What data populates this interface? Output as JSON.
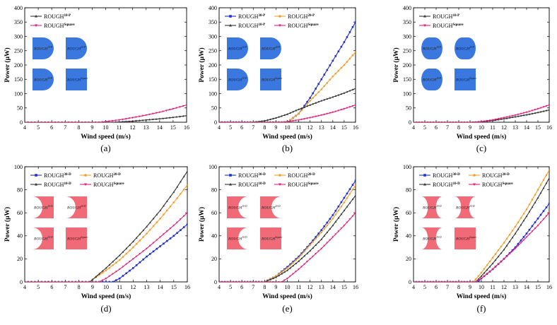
{
  "panels": [
    {
      "id": "a",
      "letter": "(a)",
      "ylim": [
        0,
        400
      ],
      "ytick_step": 50,
      "inset_color": "#3a78e0",
      "legend_cols": 1,
      "insets": [
        {
          "label_main": "ROUGH",
          "label_sub": "10-P",
          "shape": "round-right"
        },
        {
          "label_main": "ROUGH",
          "label_sub": "20-P",
          "shape": "round-right"
        },
        {
          "label_main": "ROUGH",
          "label_sub": "30-P",
          "shape": "round-right"
        },
        {
          "label_main": "ROUGH",
          "label_sub": "Square",
          "shape": "square"
        }
      ],
      "chart_data": {
        "type": "line",
        "xlabel": "Wind speed (m/s)",
        "ylabel": "Power (μW)",
        "xlim": [
          4,
          16
        ],
        "ylim": [
          0,
          400
        ],
        "xticks": [
          4,
          5,
          6,
          7,
          8,
          9,
          10,
          11,
          12,
          13,
          14,
          15,
          16
        ],
        "yticks": [
          0,
          50,
          100,
          150,
          200,
          250,
          300,
          350,
          400
        ],
        "series": [
          {
            "name_main": "ROUGH",
            "name_sub": "10-P",
            "color": "#333333",
            "marker": "triangle",
            "x": [
              4,
              10.5,
              11,
              12,
              13,
              14,
              15,
              16
            ],
            "y": [
              0,
              0,
              1,
              4,
              8,
              12,
              17,
              23
            ]
          },
          {
            "name_main": "ROUGH",
            "name_sub": "Square",
            "color": "#e0217a",
            "marker": "triangle-down",
            "x": [
              4,
              9.5,
              10,
              11,
              12,
              13,
              14,
              15,
              16
            ],
            "y": [
              0,
              0,
              2,
              8,
              16,
              25,
              35,
              47,
              60
            ]
          }
        ]
      }
    },
    {
      "id": "b",
      "letter": "(b)",
      "ylim": [
        0,
        400
      ],
      "ytick_step": 50,
      "inset_color": "#3a78e0",
      "legend_cols": 2,
      "insets": [
        {
          "label_main": "ROUGH",
          "label_sub": "10-P",
          "shape": "round-right"
        },
        {
          "label_main": "ROUGH",
          "label_sub": "20-P",
          "shape": "round-right"
        },
        {
          "label_main": "ROUGH",
          "label_sub": "30-P",
          "shape": "round-right"
        },
        {
          "label_main": "ROUGH",
          "label_sub": "Square",
          "shape": "square"
        }
      ],
      "chart_data": {
        "type": "line",
        "xlabel": "Wind speed (m/s)",
        "ylabel": "Power (μW)",
        "xlim": [
          4,
          16
        ],
        "ylim": [
          0,
          400
        ],
        "xticks": [
          4,
          5,
          6,
          7,
          8,
          9,
          10,
          11,
          12,
          13,
          14,
          15,
          16
        ],
        "yticks": [
          0,
          50,
          100,
          150,
          200,
          250,
          300,
          350,
          400
        ],
        "series": [
          {
            "name_main": "ROUGH",
            "name_sub": "30-P",
            "color": "#1f2fd1",
            "marker": "square",
            "x": [
              4,
              10,
              11,
              12,
              13,
              14,
              15,
              16
            ],
            "y": [
              0,
              0,
              30,
              85,
              150,
              215,
              280,
              350
            ]
          },
          {
            "name_main": "ROUGH",
            "name_sub": "20-P",
            "color": "#f0a030",
            "marker": "circle",
            "x": [
              4,
              10,
              11,
              12,
              13,
              14,
              15,
              16
            ],
            "y": [
              0,
              0,
              30,
              75,
              115,
              160,
              200,
              245
            ]
          },
          {
            "name_main": "ROUGH",
            "name_sub": "10-P",
            "color": "#333333",
            "marker": "triangle",
            "x": [
              4,
              7,
              8,
              9,
              10,
              11,
              12,
              13,
              14,
              15,
              16
            ],
            "y": [
              0,
              0,
              5,
              15,
              28,
              45,
              60,
              75,
              88,
              102,
              118
            ]
          },
          {
            "name_main": "ROUGH",
            "name_sub": "Square",
            "color": "#e0217a",
            "marker": "triangle-down",
            "x": [
              4,
              9.5,
              10,
              11,
              12,
              13,
              14,
              15,
              16
            ],
            "y": [
              0,
              0,
              2,
              8,
              16,
              25,
              35,
              47,
              60
            ]
          }
        ]
      }
    },
    {
      "id": "c",
      "letter": "(c)",
      "ylim": [
        0,
        400
      ],
      "ytick_step": 50,
      "inset_color": "#3a78e0",
      "legend_cols": 1,
      "insets": [
        {
          "label_main": "ROUGH",
          "label_sub": "10-P",
          "shape": "round-both"
        },
        {
          "label_main": "ROUGH",
          "label_sub": "20-P",
          "shape": "round-both"
        },
        {
          "label_main": "ROUGH",
          "label_sub": "30-P",
          "shape": "round-both"
        },
        {
          "label_main": "ROUGH",
          "label_sub": "Square",
          "shape": "square"
        }
      ],
      "chart_data": {
        "type": "line",
        "xlabel": "Wind speed (m/s)",
        "ylabel": "Power (μW)",
        "xlim": [
          4,
          16
        ],
        "ylim": [
          0,
          400
        ],
        "xticks": [
          4,
          5,
          6,
          7,
          8,
          9,
          10,
          11,
          12,
          13,
          14,
          15,
          16
        ],
        "yticks": [
          0,
          50,
          100,
          150,
          200,
          250,
          300,
          350,
          400
        ],
        "series": [
          {
            "name_main": "ROUGH",
            "name_sub": "10-P",
            "color": "#333333",
            "marker": "triangle",
            "x": [
              4,
              9,
              10,
              11,
              12,
              13,
              14,
              15,
              16
            ],
            "y": [
              0,
              0,
              2,
              6,
              12,
              19,
              26,
              34,
              43
            ]
          },
          {
            "name_main": "ROUGH",
            "name_sub": "Square",
            "color": "#e0217a",
            "marker": "triangle-down",
            "x": [
              4,
              9.5,
              10,
              11,
              12,
              13,
              14,
              15,
              16
            ],
            "y": [
              0,
              0,
              2,
              8,
              16,
              25,
              35,
              47,
              60
            ]
          }
        ]
      }
    },
    {
      "id": "d",
      "letter": "(d)",
      "ylim": [
        0,
        100
      ],
      "ytick_step": 20,
      "inset_color": "#f06a78",
      "legend_cols": 2,
      "insets": [
        {
          "label_main": "ROUGH",
          "label_sub": "10-D",
          "shape": "concave-left"
        },
        {
          "label_main": "ROUGH",
          "label_sub": "20-D",
          "shape": "concave-left"
        },
        {
          "label_main": "ROUGH",
          "label_sub": "30-D",
          "shape": "concave-left"
        },
        {
          "label_main": "ROUGH",
          "label_sub": "Square",
          "shape": "square"
        }
      ],
      "chart_data": {
        "type": "line",
        "xlabel": "Wind speed (m/s)",
        "ylabel": "Power (μW)",
        "xlim": [
          4,
          16
        ],
        "ylim": [
          0,
          100
        ],
        "xticks": [
          4,
          5,
          6,
          7,
          8,
          9,
          10,
          11,
          12,
          13,
          14,
          15,
          16
        ],
        "yticks": [
          0,
          20,
          40,
          60,
          80,
          100
        ],
        "series": [
          {
            "name_main": "ROUGH",
            "name_sub": "30-D",
            "color": "#1f2fd1",
            "marker": "square",
            "x": [
              4,
              10.5,
              11,
              12,
              13,
              14,
              15,
              16
            ],
            "y": [
              0,
              0,
              3,
              12,
              22,
              31,
              40,
              50
            ]
          },
          {
            "name_main": "ROUGH",
            "name_sub": "20-D",
            "color": "#f0a030",
            "marker": "circle",
            "x": [
              4,
              8.8,
              9,
              10,
              11,
              12,
              13,
              14,
              15,
              16
            ],
            "y": [
              0,
              0,
              2,
              10,
              19,
              30,
              42,
              55,
              69,
              84
            ]
          },
          {
            "name_main": "ROUGH",
            "name_sub": "10-D",
            "color": "#333333",
            "marker": "triangle",
            "x": [
              4,
              8.8,
              9,
              10,
              11,
              12,
              13,
              14,
              15,
              16
            ],
            "y": [
              0,
              0,
              2,
              12,
              23,
              35,
              48,
              62,
              78,
              96
            ]
          },
          {
            "name_main": "ROUGH",
            "name_sub": "Square",
            "color": "#e0217a",
            "marker": "triangle-down",
            "x": [
              4,
              9.5,
              10,
              11,
              12,
              13,
              14,
              15,
              16
            ],
            "y": [
              0,
              0,
              3,
              11,
              20,
              29,
              39,
              49,
              60
            ]
          }
        ]
      }
    },
    {
      "id": "e",
      "letter": "(e)",
      "ylim": [
        0,
        100
      ],
      "ytick_step": 20,
      "inset_color": "#f06a78",
      "legend_cols": 2,
      "insets": [
        {
          "label_main": "ROUGH",
          "label_sub": "10-D",
          "shape": "concave-right"
        },
        {
          "label_main": "ROUGH",
          "label_sub": "20-D",
          "shape": "concave-right"
        },
        {
          "label_main": "ROUGH",
          "label_sub": "30-D",
          "shape": "concave-right"
        },
        {
          "label_main": "ROUGH",
          "label_sub": "Square",
          "shape": "square"
        }
      ],
      "chart_data": {
        "type": "line",
        "xlabel": "Wind speed (m/s)",
        "ylabel": "Power (μW)",
        "xlim": [
          4,
          16
        ],
        "ylim": [
          0,
          100
        ],
        "xticks": [
          4,
          5,
          6,
          7,
          8,
          9,
          10,
          11,
          12,
          13,
          14,
          15,
          16
        ],
        "yticks": [
          0,
          20,
          40,
          60,
          80,
          100
        ],
        "series": [
          {
            "name_main": "ROUGH",
            "name_sub": "30-D",
            "color": "#1f2fd1",
            "marker": "square",
            "x": [
              4,
              8,
              9,
              10,
              11,
              12,
              13,
              14,
              15,
              16
            ],
            "y": [
              0,
              0,
              5,
              13,
              22,
              33,
              45,
              58,
              73,
              88
            ]
          },
          {
            "name_main": "ROUGH",
            "name_sub": "20-D",
            "color": "#f0a030",
            "marker": "circle",
            "x": [
              4,
              8,
              9,
              10,
              11,
              12,
              13,
              14,
              15,
              16
            ],
            "y": [
              0,
              0,
              5,
              12,
              21,
              32,
              43,
              55,
              69,
              84
            ]
          },
          {
            "name_main": "ROUGH",
            "name_sub": "10-D",
            "color": "#333333",
            "marker": "triangle",
            "x": [
              4,
              8,
              9,
              10,
              11,
              12,
              13,
              14,
              15,
              16
            ],
            "y": [
              0,
              0,
              4,
              10,
              18,
              27,
              37,
              49,
              62,
              75
            ]
          },
          {
            "name_main": "ROUGH",
            "name_sub": "Square",
            "color": "#e0217a",
            "marker": "triangle-down",
            "x": [
              4,
              9.5,
              10,
              11,
              12,
              13,
              14,
              15,
              16
            ],
            "y": [
              0,
              0,
              3,
              11,
              20,
              29,
              39,
              49,
              60
            ]
          }
        ]
      }
    },
    {
      "id": "f",
      "letter": "(f)",
      "ylim": [
        0,
        100
      ],
      "ytick_step": 20,
      "inset_color": "#f06a78",
      "legend_cols": 2,
      "insets": [
        {
          "label_main": "ROUGH",
          "label_sub": "10-D",
          "shape": "concave-both"
        },
        {
          "label_main": "ROUGH",
          "label_sub": "20-D",
          "shape": "concave-both"
        },
        {
          "label_main": "ROUGH",
          "label_sub": "30-D",
          "shape": "concave-both"
        },
        {
          "label_main": "ROUGH",
          "label_sub": "Square",
          "shape": "square"
        }
      ],
      "chart_data": {
        "type": "line",
        "xlabel": "Wind speed (m/s)",
        "ylabel": "Power (μW)",
        "xlim": [
          4,
          16
        ],
        "ylim": [
          0,
          100
        ],
        "xticks": [
          4,
          5,
          6,
          7,
          8,
          9,
          10,
          11,
          12,
          13,
          14,
          15,
          16
        ],
        "yticks": [
          0,
          20,
          40,
          60,
          80,
          100
        ],
        "series": [
          {
            "name_main": "ROUGH",
            "name_sub": "30-D",
            "color": "#1f2fd1",
            "marker": "square",
            "x": [
              4,
              9.7,
              10,
              11,
              12,
              13,
              14,
              15,
              16
            ],
            "y": [
              0,
              0,
              3,
              11,
              20,
              30,
              42,
              55,
              68
            ]
          },
          {
            "name_main": "ROUGH",
            "name_sub": "20-D",
            "color": "#f0a030",
            "marker": "circle",
            "x": [
              4,
              9.3,
              10,
              11,
              12,
              13,
              14,
              15,
              16
            ],
            "y": [
              0,
              0,
              8,
              21,
              34,
              48,
              63,
              80,
              97
            ]
          },
          {
            "name_main": "ROUGH",
            "name_sub": "10-D",
            "color": "#333333",
            "marker": "triangle",
            "x": [
              4,
              9.5,
              10,
              11,
              12,
              13,
              14,
              15,
              16
            ],
            "y": [
              0,
              0,
              5,
              16,
              28,
              42,
              57,
              73,
              90
            ]
          },
          {
            "name_main": "ROUGH",
            "name_sub": "Square",
            "color": "#e0217a",
            "marker": "triangle-down",
            "x": [
              4,
              9.5,
              10,
              11,
              12,
              13,
              14,
              15,
              16
            ],
            "y": [
              0,
              0,
              3,
              11,
              20,
              29,
              39,
              49,
              60
            ]
          }
        ]
      }
    }
  ]
}
